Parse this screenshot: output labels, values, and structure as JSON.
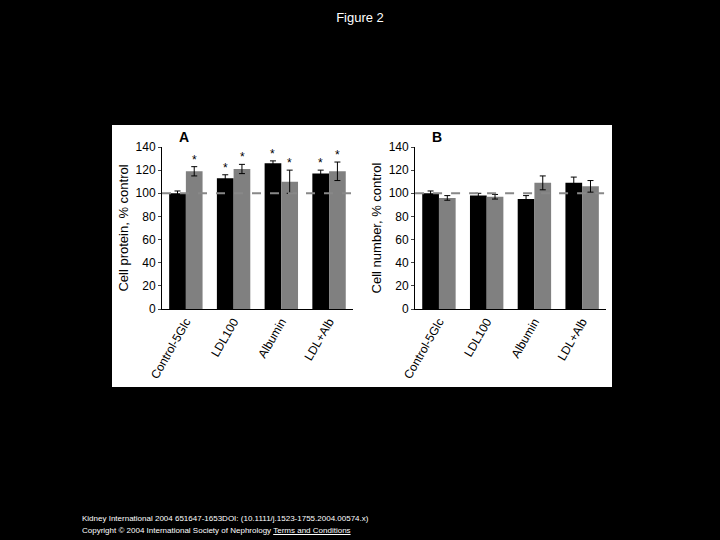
{
  "title": "Figure 2",
  "chart_data": [
    {
      "type": "bar",
      "panel": "A",
      "y_label": "Cell protein, % control",
      "categories": [
        "Control-5Glc",
        "LDL100",
        "Albumin",
        "LDL+Alb"
      ],
      "series": [
        {
          "color": "#000000",
          "values": [
            100,
            113,
            126,
            117
          ],
          "errors": [
            2,
            3,
            2,
            3
          ],
          "significance": [
            null,
            "*",
            "*",
            "*"
          ]
        },
        {
          "color": "#808080",
          "values": [
            119,
            121,
            110,
            119
          ],
          "errors": [
            4,
            4,
            10,
            8
          ],
          "significance": [
            "*",
            "*",
            "*",
            "*"
          ]
        }
      ],
      "hline": 100,
      "ylim": [
        0,
        140
      ],
      "yticks": [
        0,
        20,
        40,
        60,
        80,
        100,
        120,
        140
      ]
    },
    {
      "type": "bar",
      "panel": "B",
      "y_label": "Cell number, % control",
      "categories": [
        "Control-5Glc",
        "LDL100",
        "Albumin",
        "LDL+Alb"
      ],
      "series": [
        {
          "color": "#000000",
          "values": [
            100,
            98,
            95,
            109
          ],
          "errors": [
            2,
            2,
            3,
            5
          ]
        },
        {
          "color": "#808080",
          "values": [
            96,
            97,
            109,
            106
          ],
          "errors": [
            2,
            2,
            6,
            5
          ]
        }
      ],
      "hline": 100,
      "ylim": [
        0,
        140
      ],
      "yticks": [
        0,
        20,
        40,
        60,
        80,
        100,
        120,
        140
      ]
    }
  ],
  "footer": [
    "Kidney International 2004 651647-1653DOI: (10.1111/j.1523-1755.2004.00574.x)",
    "Copyright © 2004 International Society of Nephrology",
    "Terms and Conditions"
  ]
}
